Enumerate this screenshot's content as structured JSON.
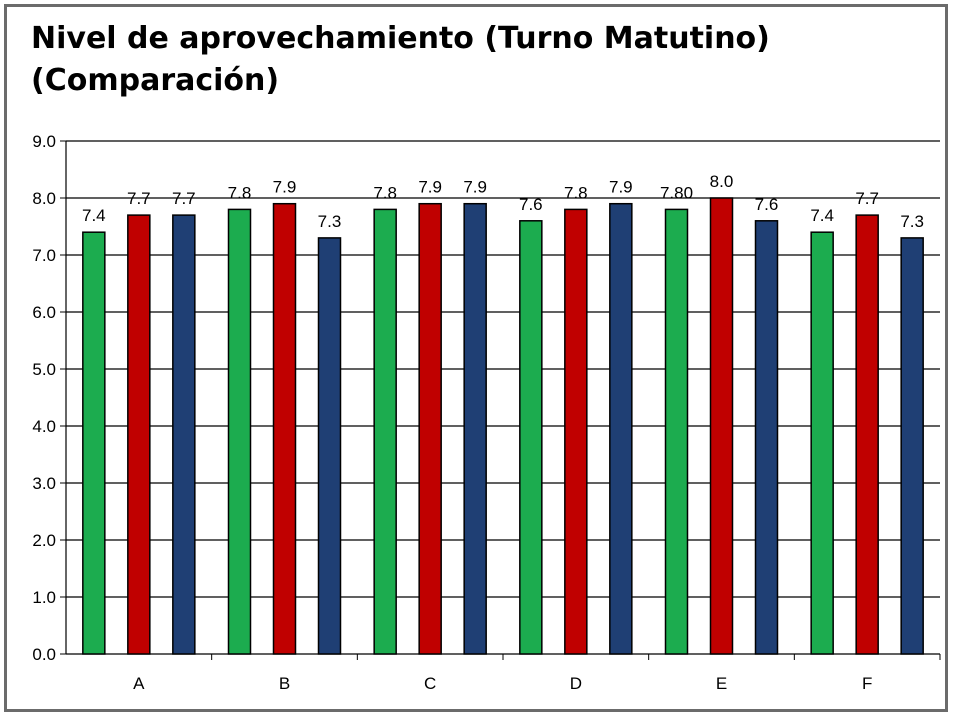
{
  "chart_data": {
    "type": "bar",
    "title_lines": [
      "Nivel de aprovechamiento (Turno Matutino)",
      "(Comparación)"
    ],
    "categories": [
      "A",
      "B",
      "C",
      "D",
      "E",
      "F"
    ],
    "series": [
      {
        "color": "#1cac4f",
        "values": [
          7.4,
          7.8,
          7.8,
          7.6,
          7.8,
          7.4
        ],
        "labels": [
          "7.4",
          "7.8",
          "7.8",
          "7.6",
          "7.80",
          "7.4"
        ]
      },
      {
        "color": "#c00000",
        "values": [
          7.7,
          7.9,
          7.9,
          7.8,
          8.0,
          7.7
        ],
        "labels": [
          "7.7",
          "7.9",
          "7.9",
          "7.8",
          "8.0",
          "7.7"
        ]
      },
      {
        "color": "#1f3f74",
        "values": [
          7.7,
          7.3,
          7.9,
          7.9,
          7.6,
          7.3
        ],
        "labels": [
          "7.7",
          "7.3",
          "7.9",
          "7.9",
          "7.6",
          "7.3"
        ]
      }
    ],
    "ylim": [
      0,
      9
    ],
    "yticks": [
      "0.0",
      "1.0",
      "2.0",
      "3.0",
      "4.0",
      "5.0",
      "6.0",
      "7.0",
      "8.0",
      "9.0"
    ],
    "grid": true,
    "xlabel": "",
    "ylabel": ""
  }
}
